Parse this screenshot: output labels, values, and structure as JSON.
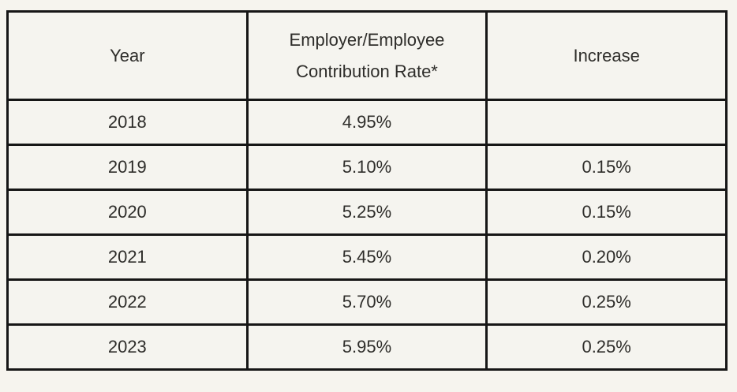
{
  "table": {
    "headers": [
      "Year",
      "Employer/Employee Contribution Rate*",
      "Increase"
    ],
    "rows": [
      {
        "year": "2018",
        "rate": "4.95%",
        "increase": ""
      },
      {
        "year": "2019",
        "rate": "5.10%",
        "increase": "0.15%"
      },
      {
        "year": "2020",
        "rate": "5.25%",
        "increase": "0.15%"
      },
      {
        "year": "2021",
        "rate": "5.45%",
        "increase": "0.20%"
      },
      {
        "year": "2022",
        "rate": "5.70%",
        "increase": "0.25%"
      },
      {
        "year": "2023",
        "rate": "5.95%",
        "increase": "0.25%"
      }
    ],
    "colors": {
      "page_background": "#f6f4ee",
      "cell_background": "#f5f4ef",
      "border": "#161616",
      "text": "#2e2d2a"
    }
  },
  "chart_data": {
    "type": "table",
    "title": "",
    "columns": [
      "Year",
      "Employer/Employee Contribution Rate*",
      "Increase"
    ],
    "rows": [
      [
        "2018",
        "4.95%",
        ""
      ],
      [
        "2019",
        "5.10%",
        "0.15%"
      ],
      [
        "2020",
        "5.25%",
        "0.15%"
      ],
      [
        "2021",
        "5.45%",
        "0.20%"
      ],
      [
        "2022",
        "5.70%",
        "0.25%"
      ],
      [
        "2023",
        "5.95%",
        "0.25%"
      ]
    ],
    "notes": "Contribution rate column header carries an asterisk footnote marker; 2018 row has no increase value."
  }
}
